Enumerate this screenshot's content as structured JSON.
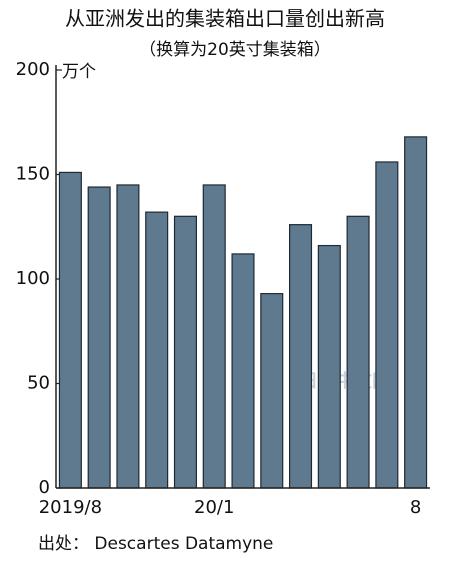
{
  "chart_data": {
    "type": "bar",
    "title": "从亚洲发出的集装箱出口量创出新高",
    "subtitle": "（换算为20英寸集装箱）",
    "y_unit": "万个",
    "source": "出处：  Descartes Datamyne",
    "watermark": "日经中文网",
    "categories": [
      "2019/8",
      null,
      null,
      null,
      null,
      "20/1",
      null,
      null,
      null,
      null,
      null,
      null,
      "8"
    ],
    "values": [
      151,
      144,
      145,
      132,
      130,
      145,
      112,
      93,
      126,
      116,
      130,
      156,
      168
    ],
    "color": "#5f7a8f",
    "ylim": [
      0,
      200
    ],
    "yticks": [
      0,
      50,
      100,
      150,
      200
    ]
  }
}
